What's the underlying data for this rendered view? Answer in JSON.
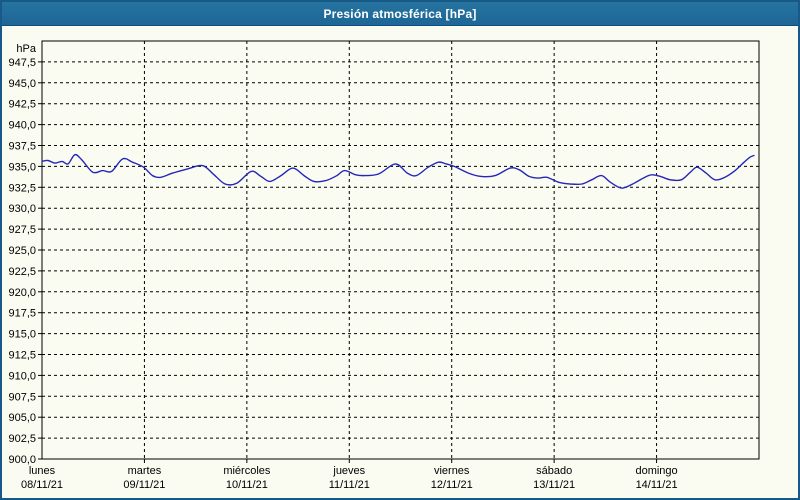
{
  "header": {
    "title": "Presión atmosférica [hPa]"
  },
  "colors": {
    "header_bg": "#1f6ba3",
    "header_text": "#ffffff",
    "widget_border": "#175a88",
    "background": "#fafcf2",
    "grid": "#000000",
    "axis_text": "#000000",
    "line": "#2626b8"
  },
  "chart_data": {
    "type": "line",
    "title": "Presión atmosférica [hPa]",
    "unit_label": "hPa",
    "xlabel": "",
    "ylabel": "hPa",
    "ylim": [
      900,
      950
    ],
    "y_tick_step": 2.5,
    "grid": "dashed",
    "legend": "none",
    "y_tick_labels": [
      "947,5",
      "945,0",
      "942,5",
      "940,0",
      "937,5",
      "935,0",
      "932,5",
      "930,0",
      "927,5",
      "925,0",
      "922,5",
      "920,0",
      "917,5",
      "915,0",
      "912,5",
      "910,0",
      "907,5",
      "905,0",
      "902,5",
      "900,0"
    ],
    "x_days": [
      {
        "name": "lunes",
        "date": "08/11/21"
      },
      {
        "name": "martes",
        "date": "09/11/21"
      },
      {
        "name": "miércoles",
        "date": "10/11/21"
      },
      {
        "name": "jueves",
        "date": "11/11/21"
      },
      {
        "name": "viernes",
        "date": "12/11/21"
      },
      {
        "name": "sábado",
        "date": "13/11/21"
      },
      {
        "name": "domingo",
        "date": "14/11/21"
      }
    ],
    "x_hours_span": 168,
    "series": [
      {
        "name": "Presión atmosférica",
        "color": "#2626b8",
        "points": [
          [
            0,
            935.6
          ],
          [
            1.4,
            935.7
          ],
          [
            3,
            935.4
          ],
          [
            4.7,
            935.6
          ],
          [
            6.1,
            935.3
          ],
          [
            7.7,
            936.4
          ],
          [
            9.3,
            935.8
          ],
          [
            11.9,
            934.3
          ],
          [
            14.2,
            934.5
          ],
          [
            16.3,
            934.4
          ],
          [
            18.9,
            935.9
          ],
          [
            21.2,
            935.5
          ],
          [
            23.8,
            934.9
          ],
          [
            25.9,
            933.9
          ],
          [
            27.8,
            933.7
          ],
          [
            30.6,
            934.2
          ],
          [
            34.1,
            934.7
          ],
          [
            37.6,
            935.1
          ],
          [
            40.1,
            934.1
          ],
          [
            42.9,
            932.9
          ],
          [
            45.7,
            933.0
          ],
          [
            49,
            934.4
          ],
          [
            51.3,
            933.8
          ],
          [
            53.4,
            933.2
          ],
          [
            56,
            933.9
          ],
          [
            58.8,
            934.8
          ],
          [
            61.4,
            933.9
          ],
          [
            63.7,
            933.2
          ],
          [
            66.5,
            933.3
          ],
          [
            69.1,
            933.9
          ],
          [
            70.9,
            934.5
          ],
          [
            73.5,
            934.0
          ],
          [
            75.6,
            933.9
          ],
          [
            78.9,
            934.1
          ],
          [
            82.8,
            935.3
          ],
          [
            85.6,
            934.2
          ],
          [
            87.7,
            933.9
          ],
          [
            90.5,
            934.9
          ],
          [
            92.9,
            935.5
          ],
          [
            94.7,
            935.3
          ],
          [
            96.6,
            935.0
          ],
          [
            99.9,
            934.2
          ],
          [
            102.9,
            933.8
          ],
          [
            106.2,
            933.9
          ],
          [
            109.7,
            934.8
          ],
          [
            111.8,
            934.6
          ],
          [
            114.1,
            933.8
          ],
          [
            116.4,
            933.6
          ],
          [
            118.3,
            933.7
          ],
          [
            121.1,
            933.1
          ],
          [
            123.7,
            932.9
          ],
          [
            126.5,
            932.9
          ],
          [
            128.8,
            933.4
          ],
          [
            131.1,
            933.9
          ],
          [
            133.2,
            933.1
          ],
          [
            135.8,
            932.4
          ],
          [
            138.4,
            932.9
          ],
          [
            140.9,
            933.6
          ],
          [
            142.8,
            934.0
          ],
          [
            144.9,
            933.8
          ],
          [
            147.2,
            933.4
          ],
          [
            149.8,
            933.4
          ],
          [
            151.9,
            934.3
          ],
          [
            153.5,
            934.9
          ],
          [
            155.6,
            934.2
          ],
          [
            157.7,
            933.4
          ],
          [
            160,
            933.7
          ],
          [
            162.4,
            934.5
          ],
          [
            164.5,
            935.5
          ],
          [
            165.9,
            936.1
          ],
          [
            166.8,
            936.3
          ]
        ]
      }
    ]
  }
}
